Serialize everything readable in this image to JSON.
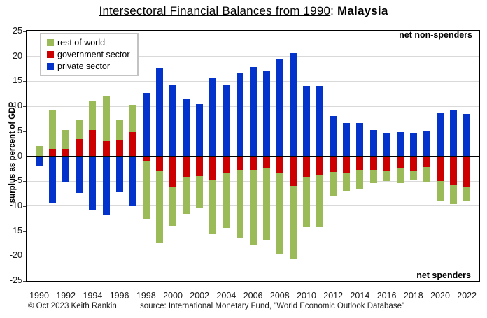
{
  "title": {
    "main": "Intersectoral Financial Balances from 1990",
    "separator": ": ",
    "region": "Malaysia"
  },
  "annotations": {
    "top_right": "net non-spenders",
    "bottom_right": "net spenders"
  },
  "footer": {
    "copyright": "© Oct 2023 Keith Rankin",
    "source": "source:  International Monetary Fund, \"World Economic Outlook Database\""
  },
  "colors": {
    "rest_of_world": "#9bbb59",
    "government": "#cc0000",
    "private": "#0433cc",
    "gridline": "#d9d9d9",
    "zero_line": "#000000"
  },
  "legend": {
    "items": [
      {
        "label": "rest of world",
        "color": "#9bbb59"
      },
      {
        "label": "government sector",
        "color": "#cc0000"
      },
      {
        "label": "private sector",
        "color": "#0433cc"
      }
    ]
  },
  "chart_data": {
    "type": "bar",
    "stacked": true,
    "title": "Intersectoral Financial Balances from 1990: Malaysia",
    "ylabel": "surplus as percent of GDP",
    "ylim": [
      -25,
      25
    ],
    "y_ticks": [
      25,
      20,
      15,
      10,
      5,
      0,
      -5,
      -10,
      -15,
      -20,
      -25
    ],
    "grid": true,
    "legend_position": "top-left",
    "categories": [
      1990,
      1991,
      1992,
      1993,
      1994,
      1995,
      1996,
      1997,
      1998,
      1999,
      2000,
      2001,
      2002,
      2003,
      2004,
      2005,
      2006,
      2007,
      2008,
      2009,
      2010,
      2011,
      2012,
      2013,
      2014,
      2015,
      2016,
      2017,
      2018,
      2019,
      2020,
      2021,
      2022
    ],
    "x_tick_labels": [
      "1990",
      "1992",
      "1994",
      "1996",
      "1998",
      "2000",
      "2002",
      "2004",
      "2006",
      "2008",
      "2010",
      "2012",
      "2014",
      "2016",
      "2018",
      "2020",
      "2022"
    ],
    "series": [
      {
        "name": "rest of world",
        "key": "rest_of_world",
        "values": [
          2.0,
          7.7,
          3.7,
          4.0,
          5.7,
          9.0,
          4.1,
          5.5,
          -11.7,
          -14.5,
          -8.0,
          -7.4,
          -6.3,
          -10.9,
          -10.8,
          -13.6,
          -15.0,
          -14.4,
          -16.1,
          -14.5,
          -10.0,
          -10.5,
          -4.8,
          -3.5,
          -4.0,
          -2.7,
          -2.0,
          -2.9,
          -1.8,
          -3.1,
          -4.0,
          -3.9,
          -2.7
        ]
      },
      {
        "name": "government sector",
        "key": "government",
        "values": [
          0.0,
          1.5,
          1.5,
          3.4,
          5.3,
          3.0,
          3.2,
          4.8,
          -1.0,
          -3.0,
          -6.1,
          -4.2,
          -4.0,
          -4.7,
          -3.5,
          -2.7,
          -2.7,
          -2.5,
          -3.4,
          -6.0,
          -4.2,
          -3.7,
          -3.1,
          -3.4,
          -2.7,
          -2.7,
          -3.0,
          -2.5,
          -3.0,
          -2.2,
          -5.0,
          -5.7,
          -6.3
        ]
      },
      {
        "name": "private sector",
        "key": "private",
        "values": [
          -2.0,
          -9.3,
          -5.2,
          -7.4,
          -10.9,
          -11.9,
          -7.2,
          -10.0,
          12.7,
          17.6,
          14.3,
          11.6,
          10.4,
          15.7,
          14.4,
          16.6,
          17.9,
          17.0,
          19.5,
          20.6,
          14.1,
          14.1,
          8.0,
          6.6,
          6.7,
          5.2,
          4.5,
          4.8,
          4.5,
          5.1,
          8.6,
          9.2,
          8.5
        ]
      }
    ]
  }
}
